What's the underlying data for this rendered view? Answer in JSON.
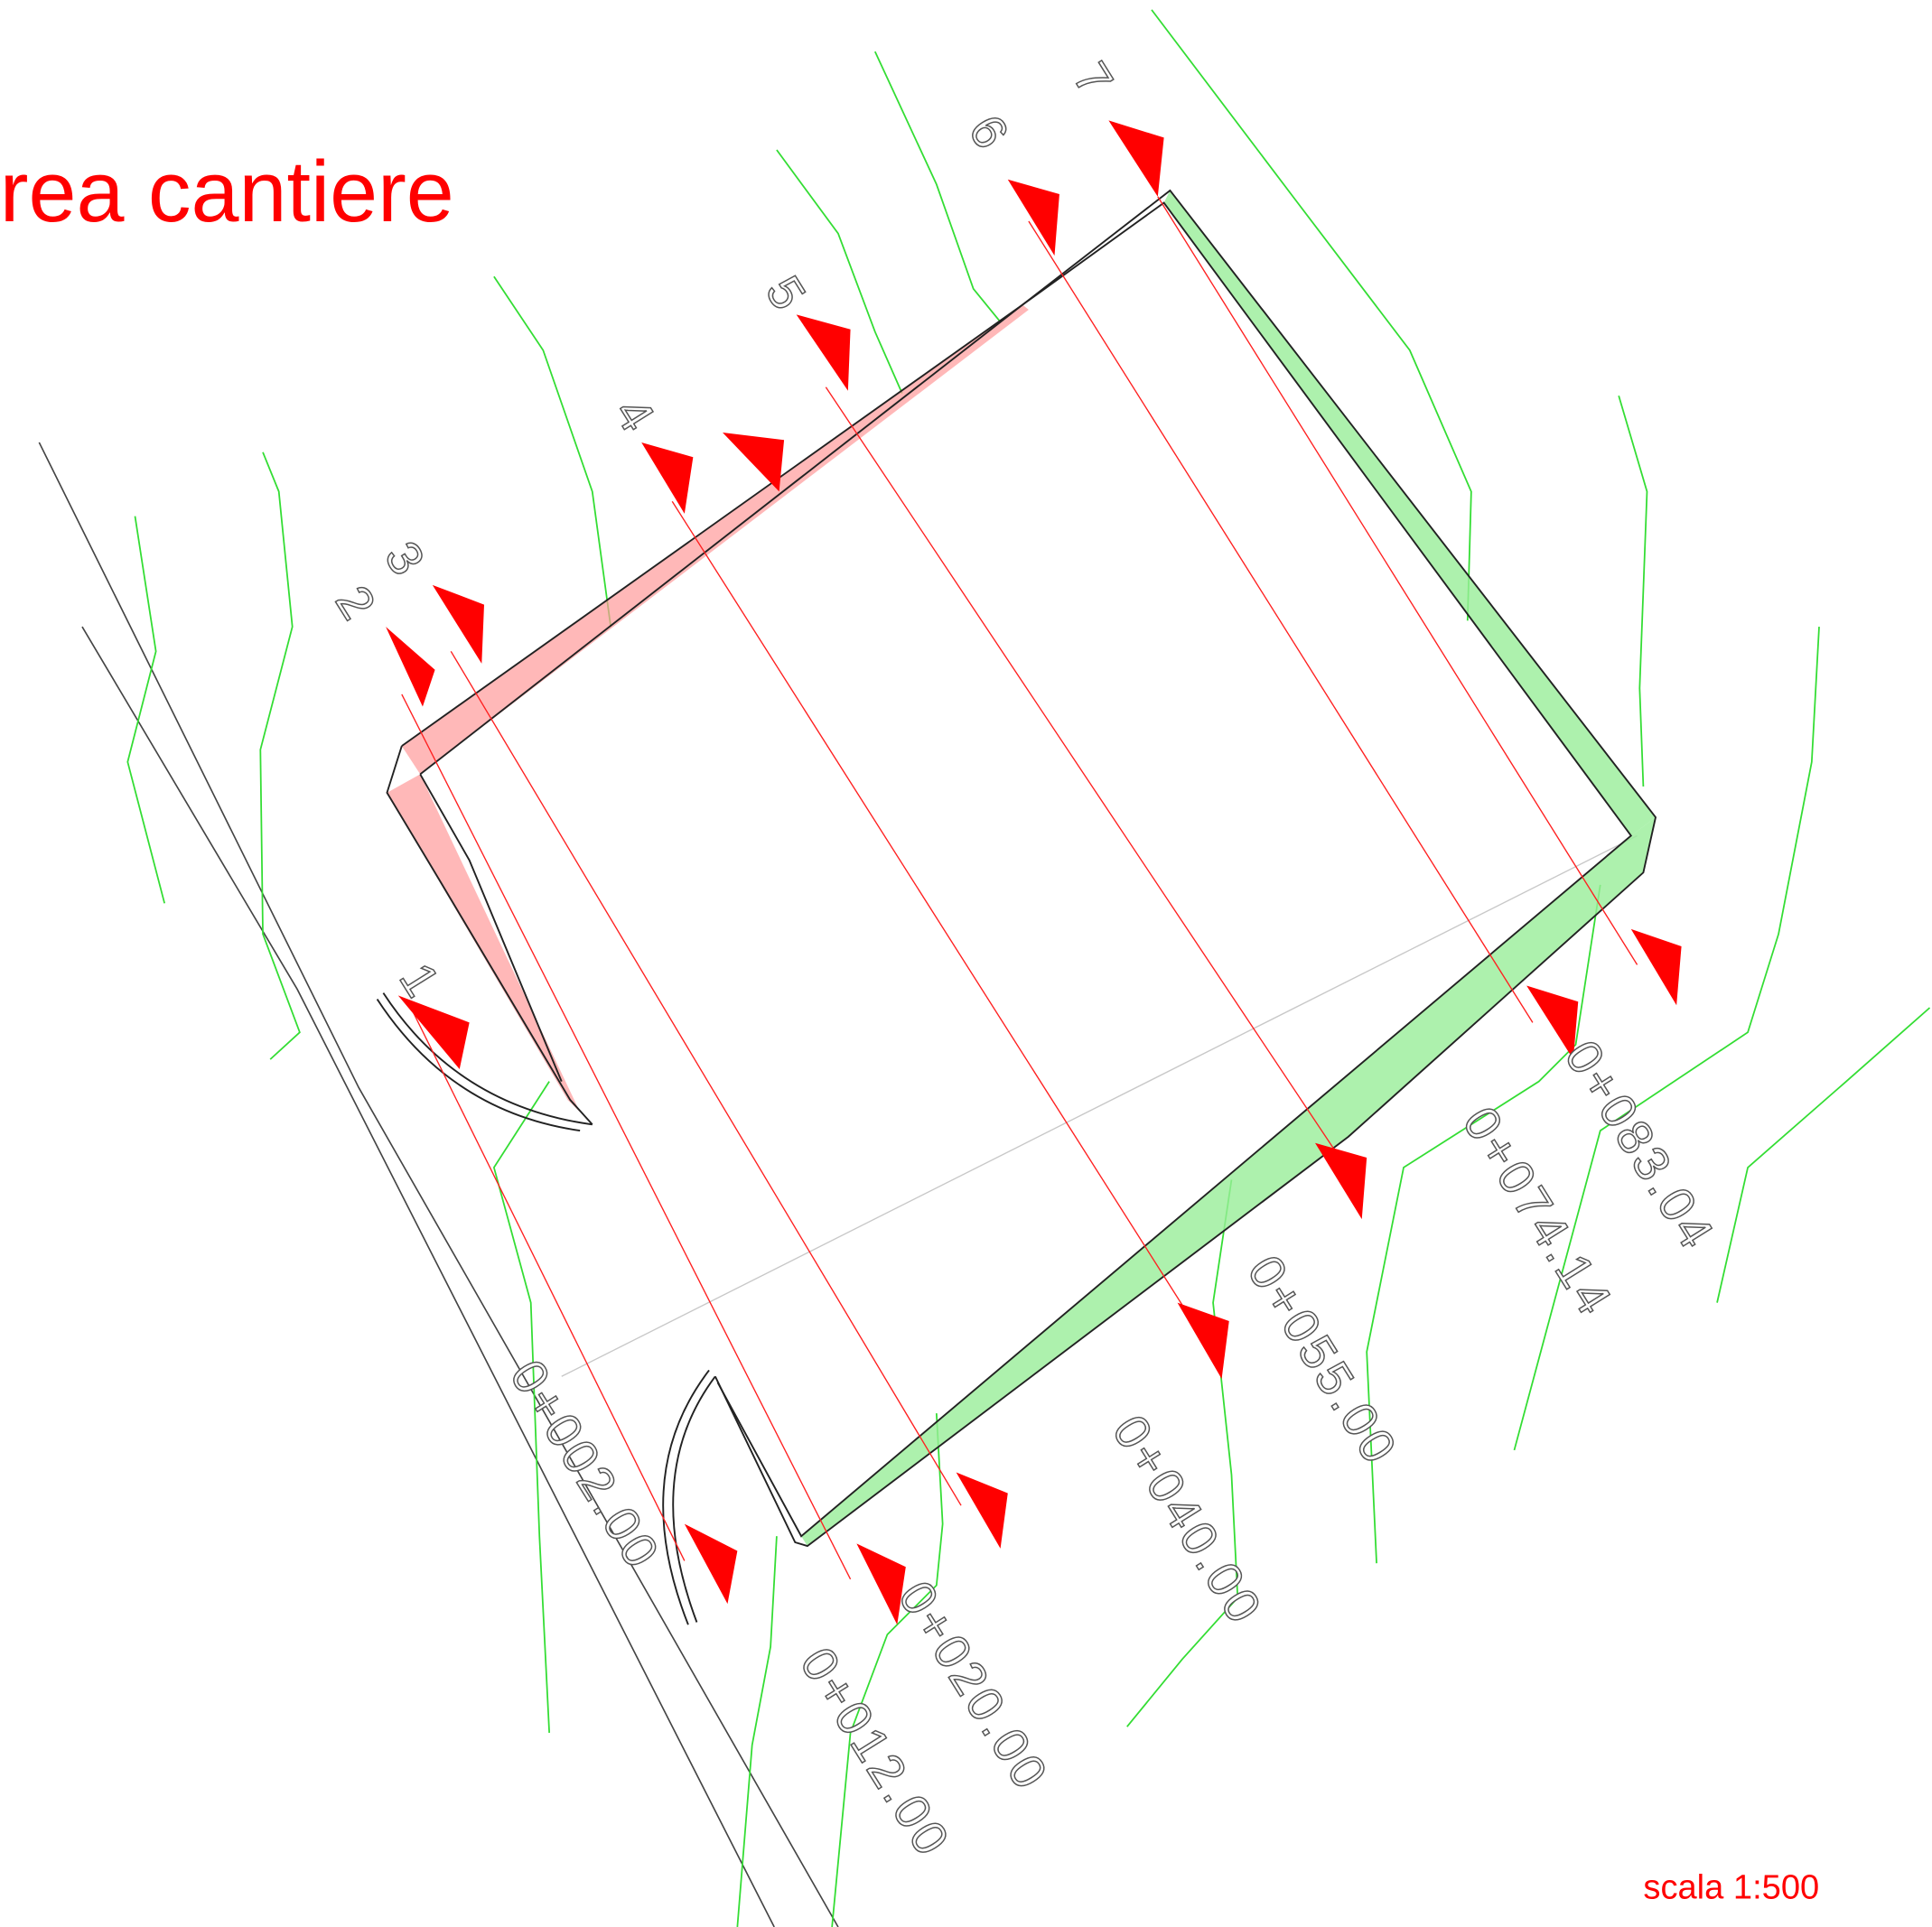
{
  "title": "rea cantiere",
  "scale": "scala 1:500",
  "sections": [
    {
      "number": "1",
      "chainage": "0+002.00"
    },
    {
      "number": "2",
      "chainage": "0+012.00"
    },
    {
      "number": "3",
      "chainage": "0+020.00"
    },
    {
      "number": "4",
      "chainage": "0+040.00"
    },
    {
      "number": "5",
      "chainage": "0+055.00"
    },
    {
      "number": "6",
      "chainage": "0+074.14"
    },
    {
      "number": "7",
      "chainage": "0+083.04"
    }
  ]
}
